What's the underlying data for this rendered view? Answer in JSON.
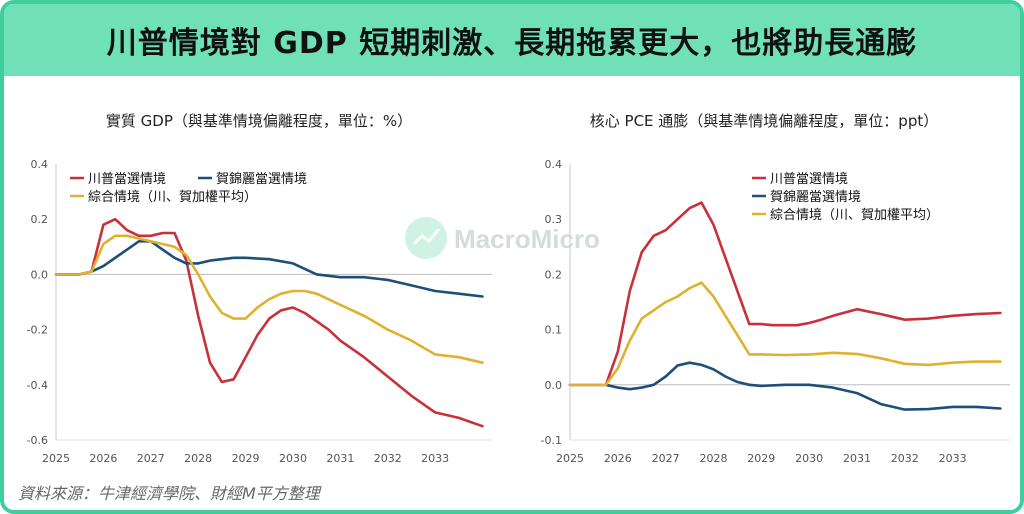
{
  "header": {
    "title": "川普情境對 GDP 短期刺激、長期拖累更大，也將助長通膨"
  },
  "source": "資料來源：牛津經濟學院、財經M平方整理",
  "watermark": {
    "text": "MacroMicro",
    "icon": "chart-logo-icon"
  },
  "colors": {
    "accent": "#6fe0b8",
    "border": "#3fcf9c",
    "trump": "#c8313a",
    "harris": "#1f4e79",
    "blend": "#e0b030"
  },
  "chart_data": [
    {
      "type": "line",
      "title": "實質 GDP（與基準情境偏離程度，單位：%）",
      "x_ticks": [
        "2025",
        "2026",
        "2027",
        "2028",
        "2029",
        "2030",
        "2031",
        "2032",
        "2033"
      ],
      "ylim": [
        -0.6,
        0.4
      ],
      "y_ticks": [
        "0.4",
        "0.2",
        "0.0",
        "-0.2",
        "-0.4",
        "-0.6"
      ],
      "xlim": [
        2025,
        2034.2
      ],
      "legend": "top-left",
      "series": [
        {
          "name": "川普當選情境",
          "color": "#c8313a",
          "x": [
            2025,
            2025.5,
            2025.75,
            2026,
            2026.25,
            2026.5,
            2026.75,
            2027,
            2027.25,
            2027.5,
            2027.75,
            2028,
            2028.25,
            2028.5,
            2028.75,
            2029,
            2029.25,
            2029.5,
            2029.75,
            2030,
            2030.25,
            2030.5,
            2030.75,
            2031,
            2031.5,
            2032,
            2032.5,
            2033,
            2033.5,
            2034
          ],
          "y": [
            0,
            0,
            0.01,
            0.18,
            0.2,
            0.16,
            0.14,
            0.14,
            0.15,
            0.15,
            0.05,
            -0.15,
            -0.32,
            -0.39,
            -0.38,
            -0.3,
            -0.22,
            -0.16,
            -0.13,
            -0.12,
            -0.14,
            -0.17,
            -0.2,
            -0.24,
            -0.3,
            -0.37,
            -0.44,
            -0.5,
            -0.52,
            -0.55
          ]
        },
        {
          "name": "賀錦麗當選情境",
          "color": "#1f4e79",
          "x": [
            2025,
            2025.5,
            2025.75,
            2026,
            2026.25,
            2026.5,
            2026.75,
            2027,
            2027.25,
            2027.5,
            2027.75,
            2028,
            2028.25,
            2028.5,
            2028.75,
            2029,
            2029.5,
            2030,
            2030.5,
            2031,
            2031.5,
            2032,
            2032.5,
            2033,
            2033.5,
            2034
          ],
          "y": [
            0,
            0,
            0.01,
            0.03,
            0.06,
            0.09,
            0.12,
            0.12,
            0.09,
            0.06,
            0.04,
            0.04,
            0.05,
            0.055,
            0.06,
            0.06,
            0.055,
            0.04,
            0.0,
            -0.01,
            -0.01,
            -0.02,
            -0.04,
            -0.06,
            -0.07,
            -0.08
          ]
        },
        {
          "name": "綜合情境（川、賀加權平均）",
          "color": "#e0b030",
          "x": [
            2025,
            2025.5,
            2025.75,
            2026,
            2026.25,
            2026.5,
            2026.75,
            2027,
            2027.25,
            2027.5,
            2027.75,
            2028,
            2028.25,
            2028.5,
            2028.75,
            2029,
            2029.25,
            2029.5,
            2029.75,
            2030,
            2030.25,
            2030.5,
            2031,
            2031.5,
            2032,
            2032.5,
            2033,
            2033.5,
            2034
          ],
          "y": [
            0,
            0,
            0.01,
            0.11,
            0.14,
            0.14,
            0.13,
            0.12,
            0.11,
            0.1,
            0.07,
            0.0,
            -0.08,
            -0.14,
            -0.16,
            -0.16,
            -0.12,
            -0.09,
            -0.07,
            -0.06,
            -0.06,
            -0.07,
            -0.11,
            -0.15,
            -0.2,
            -0.24,
            -0.29,
            -0.3,
            -0.32
          ]
        }
      ]
    },
    {
      "type": "line",
      "title": "核心 PCE 通膨（與基準情境偏離程度，單位：ppt）",
      "x_ticks": [
        "2025",
        "2026",
        "2027",
        "2028",
        "2029",
        "2030",
        "2031",
        "2032",
        "2033"
      ],
      "ylim": [
        -0.1,
        0.4
      ],
      "y_ticks": [
        "0.4",
        "0.3",
        "0.2",
        "0.1",
        "0.0",
        "-0.1"
      ],
      "xlim": [
        2025,
        2034.2
      ],
      "legend": "top-center",
      "series": [
        {
          "name": "川普當選情境",
          "color": "#c8313a",
          "x": [
            2025,
            2025.5,
            2025.75,
            2026,
            2026.25,
            2026.5,
            2026.75,
            2027,
            2027.25,
            2027.5,
            2027.75,
            2028,
            2028.25,
            2028.5,
            2028.75,
            2029,
            2029.25,
            2029.5,
            2029.75,
            2030,
            2030.25,
            2030.5,
            2031,
            2031.5,
            2032,
            2032.5,
            2033,
            2033.5,
            2034
          ],
          "y": [
            0,
            0,
            0.0,
            0.06,
            0.17,
            0.24,
            0.27,
            0.28,
            0.3,
            0.32,
            0.33,
            0.29,
            0.23,
            0.17,
            0.11,
            0.11,
            0.108,
            0.108,
            0.108,
            0.112,
            0.118,
            0.125,
            0.137,
            0.128,
            0.118,
            0.12,
            0.125,
            0.128,
            0.13
          ]
        },
        {
          "name": "賀錦麗當選情境",
          "color": "#1f4e79",
          "x": [
            2025,
            2025.5,
            2025.75,
            2026,
            2026.25,
            2026.5,
            2026.75,
            2027,
            2027.25,
            2027.5,
            2027.75,
            2028,
            2028.25,
            2028.5,
            2028.75,
            2029,
            2029.5,
            2030,
            2030.5,
            2031,
            2031.5,
            2032,
            2032.5,
            2033,
            2033.5,
            2034
          ],
          "y": [
            0,
            0,
            0,
            -0.005,
            -0.008,
            -0.005,
            0.0,
            0.015,
            0.035,
            0.04,
            0.036,
            0.028,
            0.015,
            0.005,
            0.0,
            -0.002,
            0.0,
            0.0,
            -0.005,
            -0.015,
            -0.035,
            -0.045,
            -0.044,
            -0.04,
            -0.04,
            -0.043
          ]
        },
        {
          "name": "綜合情境（川、賀加權平均）",
          "color": "#e0b030",
          "x": [
            2025,
            2025.5,
            2025.75,
            2026,
            2026.25,
            2026.5,
            2026.75,
            2027,
            2027.25,
            2027.5,
            2027.75,
            2028,
            2028.25,
            2028.5,
            2028.75,
            2029,
            2029.5,
            2030,
            2030.5,
            2031,
            2031.5,
            2032,
            2032.5,
            2033,
            2033.5,
            2034
          ],
          "y": [
            0,
            0,
            0.0,
            0.03,
            0.08,
            0.12,
            0.135,
            0.15,
            0.16,
            0.175,
            0.185,
            0.16,
            0.125,
            0.09,
            0.055,
            0.055,
            0.054,
            0.055,
            0.058,
            0.056,
            0.048,
            0.038,
            0.036,
            0.04,
            0.042,
            0.042
          ]
        }
      ]
    }
  ]
}
